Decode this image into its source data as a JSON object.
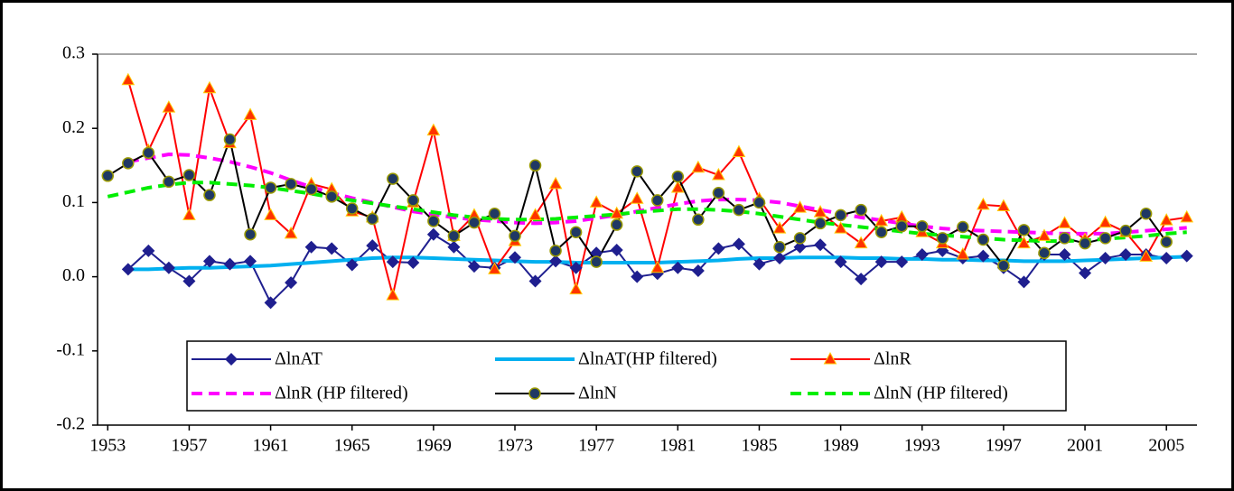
{
  "chart_data": {
    "type": "line",
    "x": [
      1953,
      1954,
      1955,
      1956,
      1957,
      1958,
      1959,
      1960,
      1961,
      1962,
      1963,
      1964,
      1965,
      1966,
      1967,
      1968,
      1969,
      1970,
      1971,
      1972,
      1973,
      1974,
      1975,
      1976,
      1977,
      1978,
      1979,
      1980,
      1981,
      1982,
      1983,
      1984,
      1985,
      1986,
      1987,
      1988,
      1989,
      1990,
      1991,
      1992,
      1993,
      1994,
      1995,
      1996,
      1997,
      1998,
      1999,
      2000,
      2001,
      2002,
      2003,
      2004,
      2005,
      2006
    ],
    "xlim": [
      1952.5,
      2006.5
    ],
    "xticks": [
      1953,
      1957,
      1961,
      1965,
      1969,
      1973,
      1977,
      1981,
      1985,
      1989,
      1993,
      1997,
      2001,
      2005
    ],
    "ylim": [
      -0.2,
      0.3
    ],
    "yticks": [
      -0.2,
      -0.1,
      {
        "value": 0,
        "label": "0.0"
      },
      0.1,
      0.2,
      0.3
    ],
    "series": [
      {
        "name": "ΔlnAT",
        "color": "#1f1f8f",
        "marker": "diamond",
        "marker_color": "#1f1f8f",
        "dash": false,
        "values": [
          null,
          0.01,
          0.035,
          0.012,
          -0.006,
          0.021,
          0.017,
          0.021,
          -0.035,
          -0.008,
          0.04,
          0.038,
          0.016,
          0.042,
          0.02,
          0.019,
          0.057,
          0.04,
          0.014,
          0.012,
          0.026,
          -0.006,
          0.021,
          0.012,
          0.032,
          0.036,
          0.0,
          0.004,
          0.012,
          0.008,
          0.038,
          0.044,
          0.017,
          0.025,
          0.04,
          0.043,
          0.02,
          -0.003,
          0.02,
          0.02,
          0.03,
          0.035,
          0.025,
          0.028,
          0.012,
          -0.007,
          0.03,
          0.03,
          0.005,
          0.025,
          0.03,
          0.03,
          0.025,
          0.028
        ]
      },
      {
        "name": "ΔlnAT(HP filtered)",
        "color": "#00b0f0",
        "marker": "none",
        "dash": false,
        "values": [
          null,
          0.01,
          0.01,
          0.011,
          0.012,
          0.012,
          0.013,
          0.014,
          0.015,
          0.017,
          0.019,
          0.021,
          0.023,
          0.025,
          0.026,
          0.026,
          0.025,
          0.024,
          0.023,
          0.022,
          0.021,
          0.02,
          0.02,
          0.019,
          0.019,
          0.019,
          0.019,
          0.019,
          0.02,
          0.021,
          0.022,
          0.024,
          0.025,
          0.025,
          0.026,
          0.026,
          0.026,
          0.025,
          0.025,
          0.024,
          0.024,
          0.023,
          0.023,
          0.022,
          0.022,
          0.021,
          0.021,
          0.021,
          0.022,
          0.023,
          0.024,
          0.025,
          0.026,
          0.027
        ]
      },
      {
        "name": "ΔlnR",
        "color": "#ff0000",
        "marker": "triangle",
        "marker_color": "#ff3300",
        "dash": false,
        "values": [
          null,
          0.265,
          0.17,
          0.228,
          0.083,
          0.254,
          0.18,
          0.218,
          0.083,
          0.058,
          0.125,
          0.118,
          0.088,
          0.08,
          -0.025,
          0.1,
          0.197,
          0.055,
          0.083,
          0.01,
          0.048,
          0.083,
          0.125,
          -0.017,
          0.1,
          0.085,
          0.105,
          0.012,
          0.12,
          0.147,
          0.137,
          0.168,
          0.105,
          0.065,
          0.093,
          0.087,
          0.065,
          0.045,
          0.075,
          0.08,
          0.06,
          0.045,
          0.03,
          0.097,
          0.095,
          0.045,
          0.055,
          0.072,
          0.05,
          0.073,
          0.06,
          0.027,
          0.076,
          0.08
        ]
      },
      {
        "name": "ΔlnR (HP filtered)",
        "color": "#ff00ff",
        "marker": "none",
        "dash": true,
        "values": [
          null,
          0.155,
          0.16,
          0.165,
          0.164,
          0.16,
          0.155,
          0.148,
          0.14,
          0.13,
          0.121,
          0.113,
          0.106,
          0.1,
          0.094,
          0.088,
          0.084,
          0.08,
          0.077,
          0.075,
          0.073,
          0.072,
          0.073,
          0.075,
          0.079,
          0.083,
          0.088,
          0.093,
          0.098,
          0.102,
          0.104,
          0.104,
          0.103,
          0.1,
          0.095,
          0.09,
          0.085,
          0.08,
          0.076,
          0.072,
          0.068,
          0.065,
          0.063,
          0.062,
          0.061,
          0.06,
          0.059,
          0.058,
          0.058,
          0.058,
          0.06,
          0.062,
          0.064,
          0.066
        ]
      },
      {
        "name": "ΔlnN",
        "color": "#000000",
        "marker": "circle",
        "marker_color": "#1f3864",
        "dash": false,
        "values": [
          0.136,
          0.153,
          0.167,
          0.128,
          0.137,
          0.11,
          0.185,
          0.057,
          0.12,
          0.125,
          0.118,
          0.108,
          0.092,
          0.078,
          0.132,
          0.103,
          0.075,
          0.055,
          0.073,
          0.085,
          0.055,
          0.15,
          0.035,
          0.06,
          0.02,
          0.07,
          0.142,
          0.103,
          0.135,
          0.077,
          0.113,
          0.09,
          0.1,
          0.04,
          0.052,
          0.072,
          0.083,
          0.09,
          0.06,
          0.068,
          0.068,
          0.052,
          0.067,
          0.05,
          0.015,
          0.063,
          0.032,
          0.052,
          0.045,
          0.052,
          0.062,
          0.085,
          0.047,
          null
        ]
      },
      {
        "name": "ΔlnN (HP filtered)",
        "color": "#00ee00",
        "marker": "none",
        "dash": true,
        "values": [
          0.108,
          0.114,
          0.12,
          0.124,
          0.127,
          0.127,
          0.125,
          0.123,
          0.12,
          0.116,
          0.112,
          0.107,
          0.103,
          0.099,
          0.095,
          0.091,
          0.087,
          0.083,
          0.08,
          0.078,
          0.077,
          0.077,
          0.078,
          0.08,
          0.082,
          0.084,
          0.087,
          0.089,
          0.091,
          0.091,
          0.09,
          0.088,
          0.085,
          0.081,
          0.077,
          0.073,
          0.07,
          0.067,
          0.064,
          0.061,
          0.058,
          0.056,
          0.054,
          0.052,
          0.05,
          0.049,
          0.048,
          0.048,
          0.049,
          0.051,
          0.053,
          0.055,
          0.058,
          0.06
        ]
      }
    ]
  }
}
